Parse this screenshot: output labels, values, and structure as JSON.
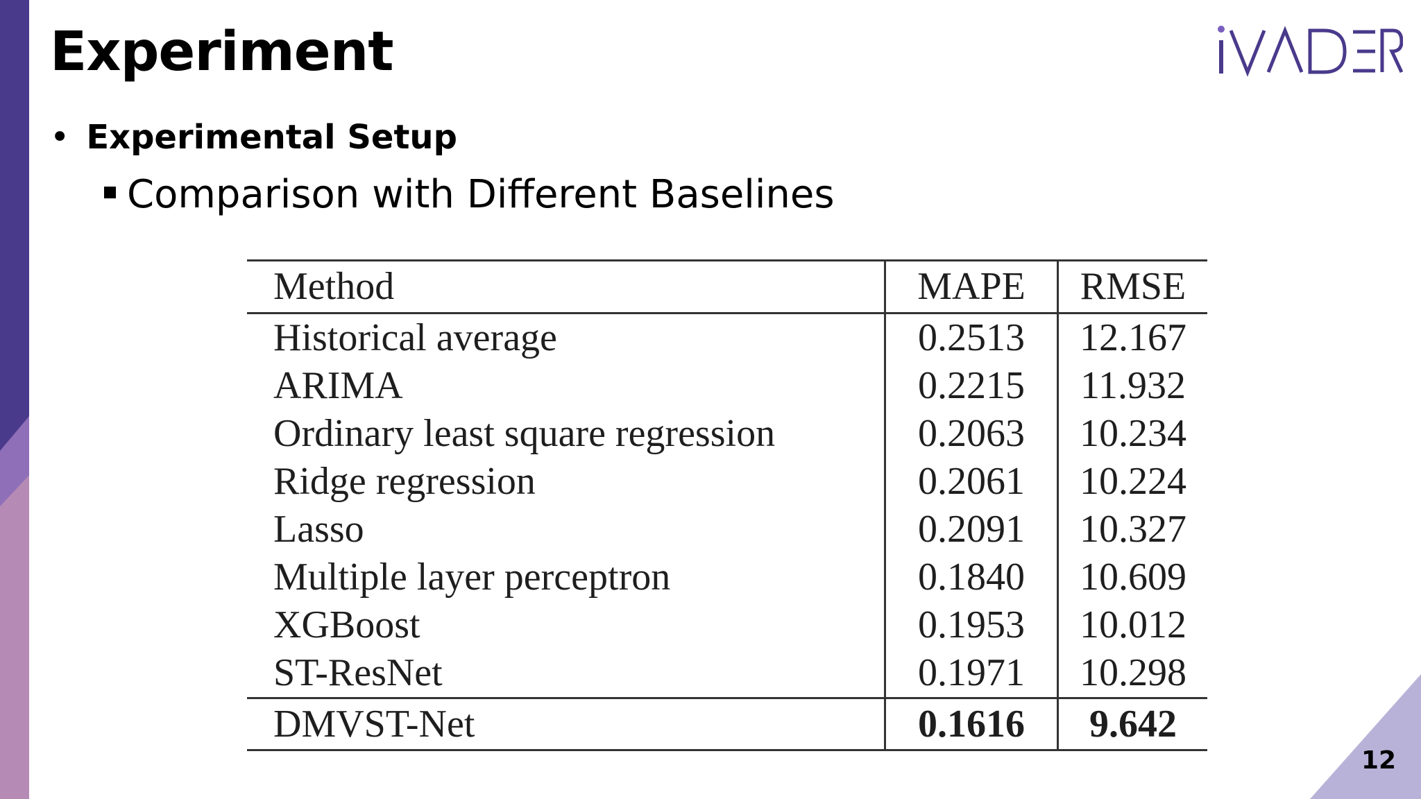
{
  "slide": {
    "title": "Experiment",
    "bullet_level1": "Experimental Setup",
    "bullet_level2": "Comparison with Different Baselines",
    "page_number": "12"
  },
  "logo": {
    "text": "iVADER",
    "color": "#4a3a8c",
    "dot_color": "#7b5fc0"
  },
  "colors": {
    "left_bar_top": "#4a3a8c",
    "left_bar_mid": "#7e6ab3",
    "left_bar_bottom": "#b58ab5",
    "corner_triangle": "#b9b2d8"
  },
  "table": {
    "headers": [
      "Method",
      "MAPE",
      "RMSE"
    ],
    "rows": [
      [
        "Historical average",
        "0.2513",
        "12.167"
      ],
      [
        "ARIMA",
        "0.2215",
        "11.932"
      ],
      [
        "Ordinary least square regression",
        "0.2063",
        "10.234"
      ],
      [
        "Ridge regression",
        "0.2061",
        "10.224"
      ],
      [
        "Lasso",
        "0.2091",
        "10.327"
      ],
      [
        "Multiple layer perceptron",
        "0.1840",
        "10.609"
      ],
      [
        "XGBoost",
        "0.1953",
        "10.012"
      ],
      [
        "ST-ResNet",
        "0.1971",
        "10.298"
      ]
    ],
    "final_row": [
      "DMVST-Net",
      "0.1616",
      "9.642"
    ]
  }
}
